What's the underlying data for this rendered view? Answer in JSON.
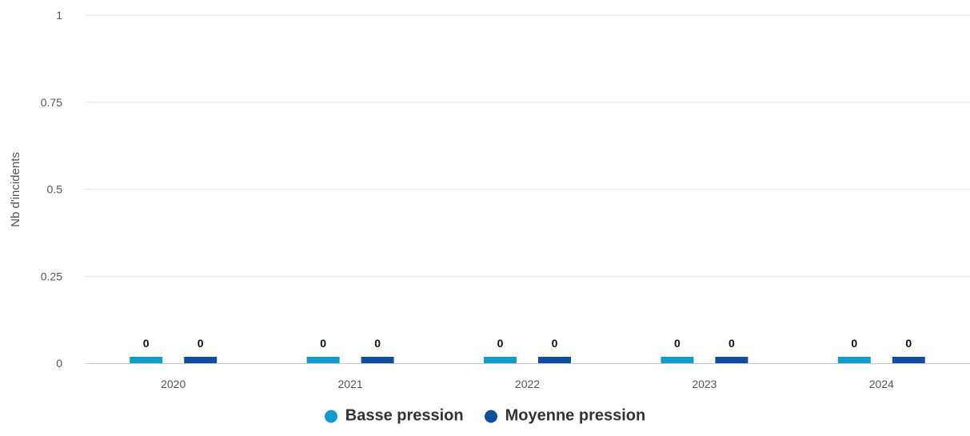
{
  "chart_data": {
    "type": "bar",
    "title": "",
    "xlabel": "",
    "ylabel": "Nb d'incidents",
    "categories": [
      "2020",
      "2021",
      "2022",
      "2023",
      "2024"
    ],
    "ylim": [
      0,
      1
    ],
    "yticks": [
      "0",
      "0.25",
      "0.5",
      "0.75",
      "1"
    ],
    "grid": true,
    "legend_position": "bottom",
    "series": [
      {
        "name": "Basse pression",
        "values": [
          0,
          0,
          0,
          0,
          0
        ],
        "color": "#129bc8"
      },
      {
        "name": "Moyenne pression",
        "values": [
          0,
          0,
          0,
          0,
          0
        ],
        "color": "#0f4f9c"
      }
    ]
  }
}
